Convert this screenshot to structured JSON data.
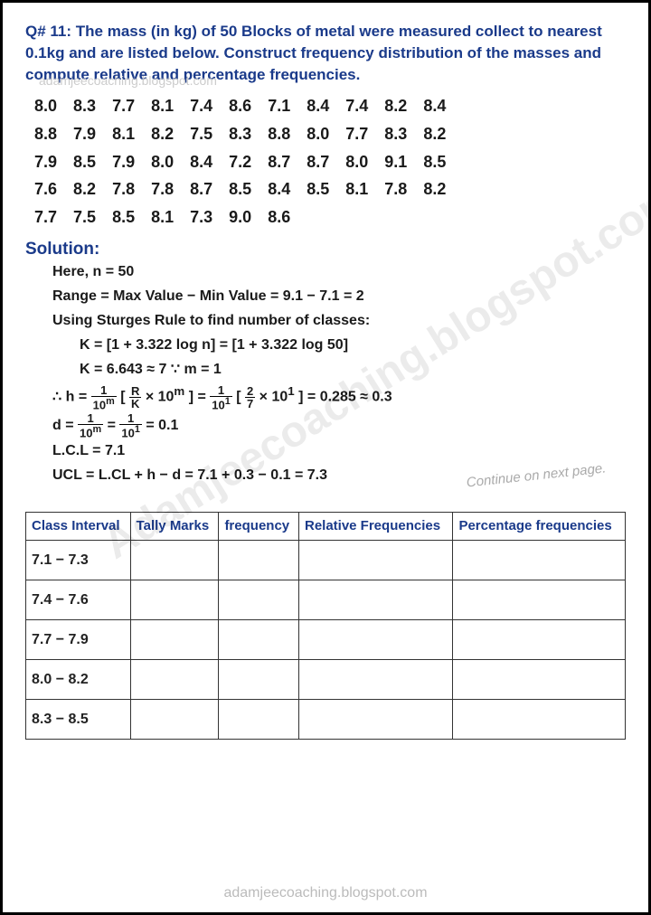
{
  "question": {
    "label": "Q# 11:",
    "text": "The mass (in kg) of 50 Blocks of metal were measured collect to nearest 0.1kg and are listed below. Construct frequency distribution of the masses and compute relative and percentage frequencies."
  },
  "data_rows": [
    [
      "8.0",
      "8.3",
      "7.7",
      "8.1",
      "7.4",
      "8.6",
      "7.1",
      "8.4",
      "7.4",
      "8.2",
      "8.4"
    ],
    [
      "8.8",
      "7.9",
      "8.1",
      "8.2",
      "7.5",
      "8.3",
      "8.8",
      "8.0",
      "7.7",
      "8.3",
      "8.2"
    ],
    [
      "7.9",
      "8.5",
      "7.9",
      "8.0",
      "8.4",
      "7.2",
      "8.7",
      "8.7",
      "8.0",
      "9.1",
      "8.5"
    ],
    [
      "7.6",
      "8.2",
      "7.8",
      "7.8",
      "8.7",
      "8.5",
      "8.4",
      "8.5",
      "8.1",
      "7.8",
      "8.2"
    ],
    [
      "7.7",
      "7.5",
      "8.5",
      "8.1",
      "7.3",
      "9.0",
      "8.6"
    ]
  ],
  "solution": {
    "label": "Solution:",
    "l1": "Here, n = 50",
    "l2": "Range = Max Value − Min Value = 9.1 − 7.1 = 2",
    "l3": "Using Sturges Rule to find number of classes:",
    "l4": "K = [1 + 3.322 log n] = [1 + 3.322 log 50]",
    "l5": "K = 6.643 ≈ 7        ∵ m = 1",
    "l6a": "∴ h =",
    "l6b": "× 10",
    "l6c": " = 0.285 ≈ 0.3",
    "l7a": "d =",
    "l7b": "= 0.1",
    "l8": "L.C.L = 7.1",
    "l9": "UCL = L.CL + h − d = 7.1 + 0.3 − 0.1 = 7.3"
  },
  "continue": "Continue on next page.",
  "table": {
    "headers": [
      "Class Interval",
      "Tally Marks",
      "frequency",
      "Relative Frequencies",
      "Percentage frequencies"
    ],
    "intervals": [
      "7.1 − 7.3",
      "7.4 − 7.6",
      "7.7 − 7.9",
      "8.0 − 8.2",
      "8.3 − 8.5"
    ]
  },
  "watermark_main": "Adamjeecoaching.blogspot.com",
  "watermark_footer": "adamjeecoaching.blogspot.com",
  "watermark_top": "adamjeecoaching.blogspot.com"
}
